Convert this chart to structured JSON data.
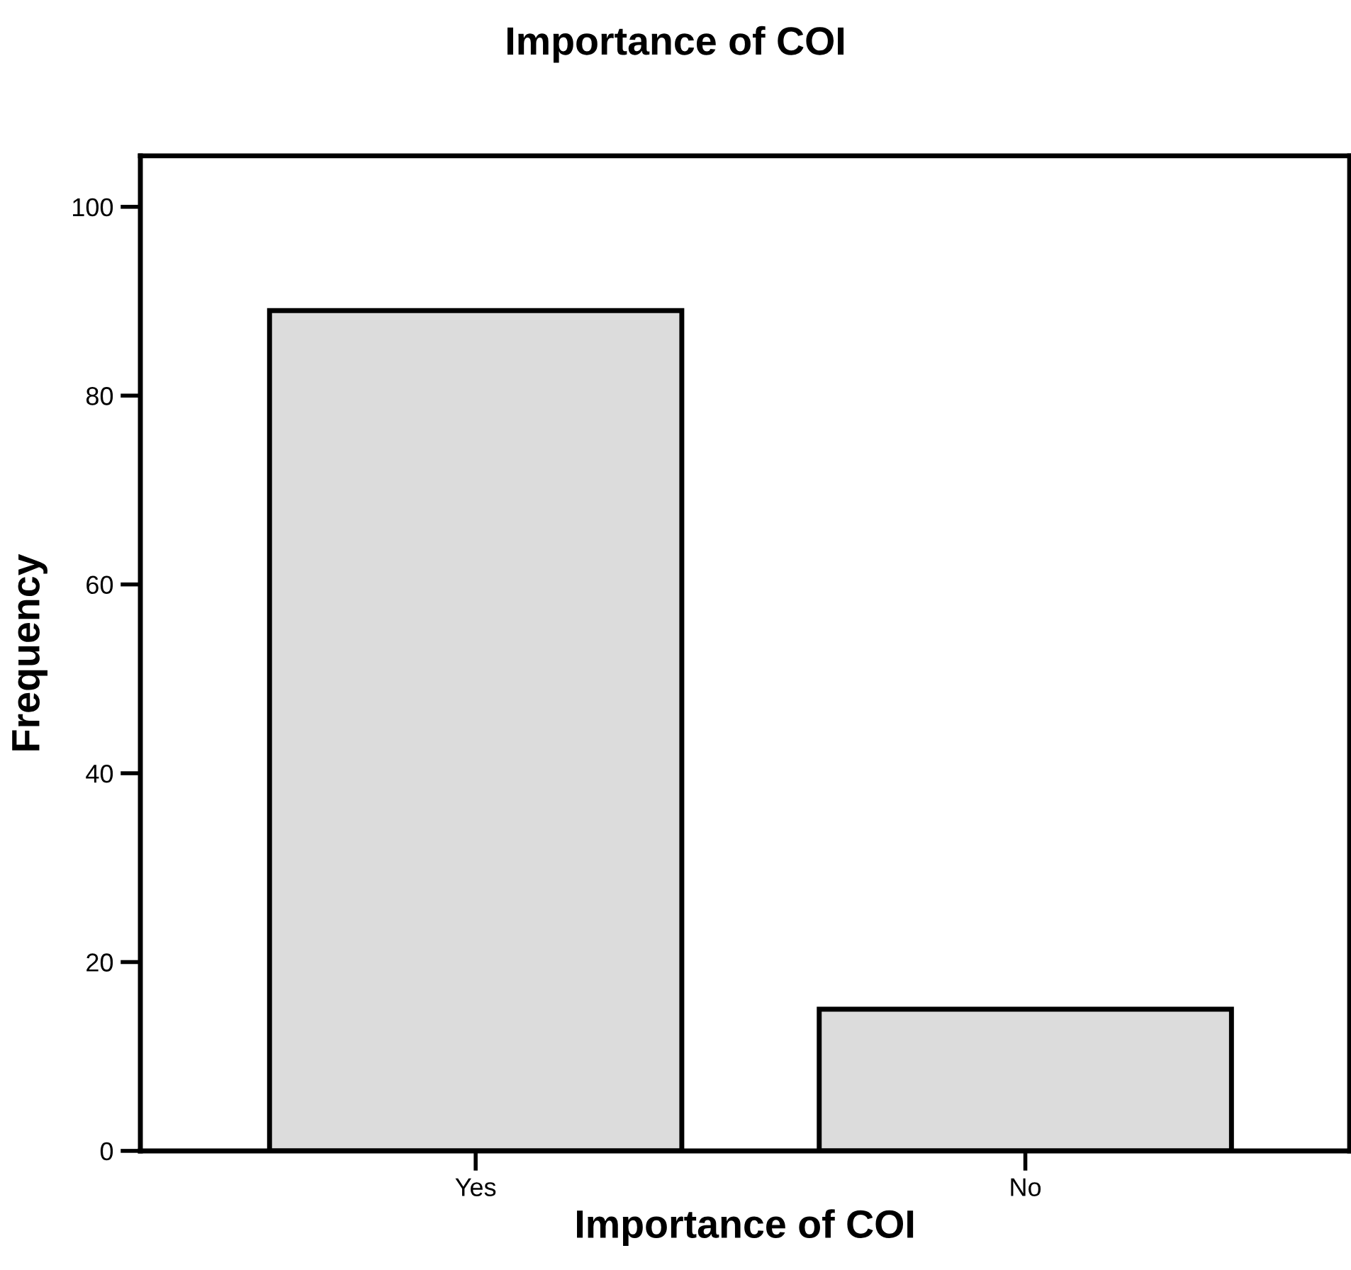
{
  "chart_data": {
    "type": "bar",
    "title": "Importance of COI",
    "xlabel": "Importance of COI",
    "ylabel": "Frequency",
    "categories": [
      "Yes",
      "No"
    ],
    "values": [
      89,
      15
    ],
    "color": "#dcdcdc",
    "ylim": [
      0,
      105.4
    ],
    "yticks": [
      0,
      20,
      40,
      60,
      80,
      100
    ],
    "grid": false
  }
}
